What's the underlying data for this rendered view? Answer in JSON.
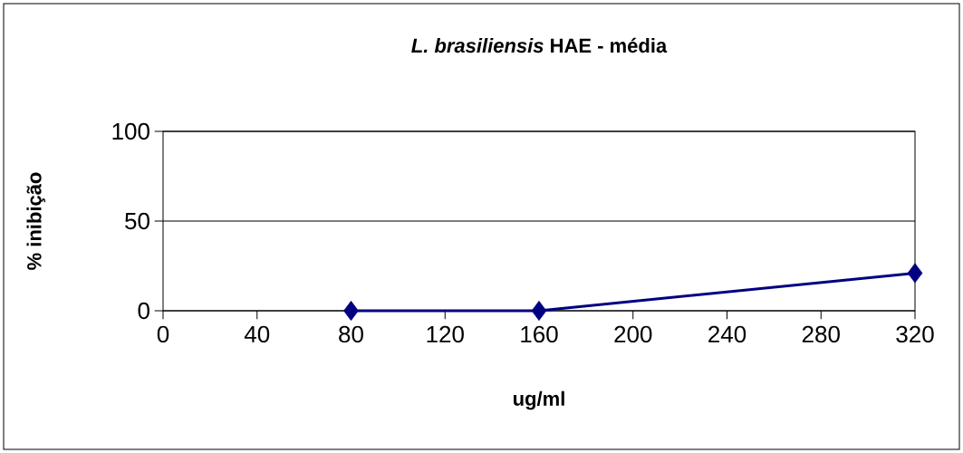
{
  "chart_data": {
    "type": "line",
    "title": "*L. brasiliensis* HAE - média",
    "xlabel": "ug/ml",
    "ylabel": "% inibição",
    "x": [
      80,
      160,
      320
    ],
    "values": [
      0,
      0,
      21
    ],
    "color": "#000080",
    "xlim": [
      0,
      320
    ],
    "ylim": [
      0,
      100
    ],
    "xticks": [
      0,
      40,
      80,
      120,
      160,
      200,
      240,
      280,
      320
    ],
    "yticks": [
      0,
      50,
      100
    ],
    "grid": "y",
    "marker": "diamond",
    "line_style": "solid"
  }
}
